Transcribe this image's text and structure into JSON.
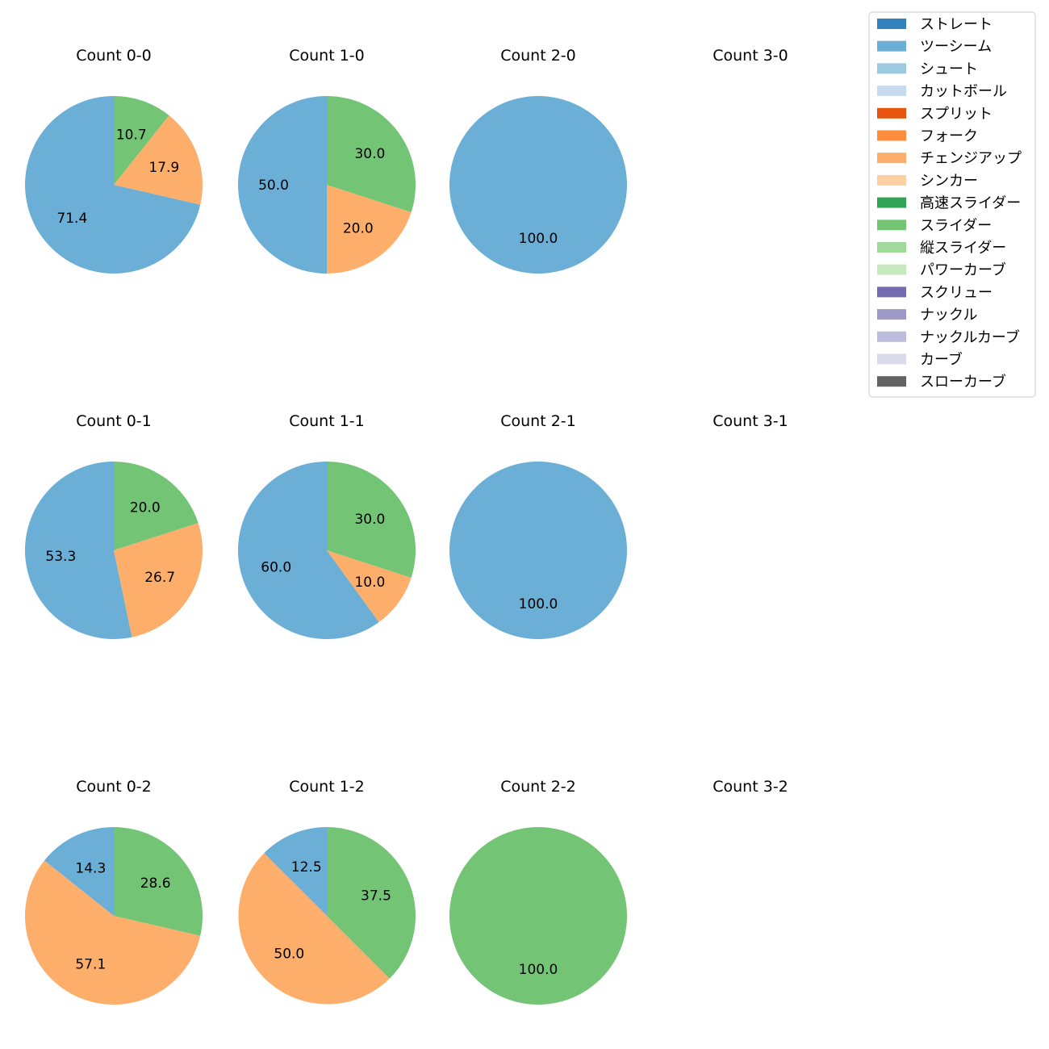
{
  "chart_data": {
    "type": "pie",
    "subplot_order": [
      "Count 0-0",
      "Count 1-0",
      "Count 2-0",
      "Count 3-0",
      "Count 0-1",
      "Count 1-1",
      "Count 2-1",
      "Count 3-1",
      "Count 0-2",
      "Count 1-2",
      "Count 2-2",
      "Count 3-2"
    ],
    "legend": {
      "placement": "top-right",
      "entries": [
        {
          "label": "ストレート",
          "color": "#3182bd"
        },
        {
          "label": "ツーシーム",
          "color": "#6baed6"
        },
        {
          "label": "シュート",
          "color": "#9ecae1"
        },
        {
          "label": "カットボール",
          "color": "#c6dbef"
        },
        {
          "label": "スプリット",
          "color": "#e6550d"
        },
        {
          "label": "フォーク",
          "color": "#fd8d3c"
        },
        {
          "label": "チェンジアップ",
          "color": "#fdae6b"
        },
        {
          "label": "シンカー",
          "color": "#fdd0a2"
        },
        {
          "label": "高速スライダー",
          "color": "#31a354"
        },
        {
          "label": "スライダー",
          "color": "#74c476"
        },
        {
          "label": "縦スライダー",
          "color": "#a1d99b"
        },
        {
          "label": "パワーカーブ",
          "color": "#c7e9c0"
        },
        {
          "label": "スクリュー",
          "color": "#756bb1"
        },
        {
          "label": "ナックル",
          "color": "#9e9ac8"
        },
        {
          "label": "ナックルカーブ",
          "color": "#bcbddc"
        },
        {
          "label": "カーブ",
          "color": "#dadaeb"
        },
        {
          "label": "スローカーブ",
          "color": "#636363"
        }
      ]
    },
    "charts": [
      {
        "title": "Count 0-0",
        "slices": [
          {
            "pitch": "ツーシーム",
            "value": 71.4,
            "label": "71.4"
          },
          {
            "pitch": "チェンジアップ",
            "value": 17.9,
            "label": "17.9"
          },
          {
            "pitch": "スライダー",
            "value": 10.7,
            "label": "10.7"
          }
        ]
      },
      {
        "title": "Count 1-0",
        "slices": [
          {
            "pitch": "ツーシーム",
            "value": 50.0,
            "label": "50.0"
          },
          {
            "pitch": "チェンジアップ",
            "value": 20.0,
            "label": "20.0"
          },
          {
            "pitch": "スライダー",
            "value": 30.0,
            "label": "30.0"
          }
        ]
      },
      {
        "title": "Count 2-0",
        "slices": [
          {
            "pitch": "ツーシーム",
            "value": 100.0,
            "label": "100.0"
          }
        ]
      },
      {
        "title": "Count 3-0",
        "slices": []
      },
      {
        "title": "Count 0-1",
        "slices": [
          {
            "pitch": "ツーシーム",
            "value": 53.3,
            "label": "53.3"
          },
          {
            "pitch": "チェンジアップ",
            "value": 26.7,
            "label": "26.7"
          },
          {
            "pitch": "スライダー",
            "value": 20.0,
            "label": "20.0"
          }
        ]
      },
      {
        "title": "Count 1-1",
        "slices": [
          {
            "pitch": "ツーシーム",
            "value": 60.0,
            "label": "60.0"
          },
          {
            "pitch": "チェンジアップ",
            "value": 10.0,
            "label": "10.0"
          },
          {
            "pitch": "スライダー",
            "value": 30.0,
            "label": "30.0"
          }
        ]
      },
      {
        "title": "Count 2-1",
        "slices": [
          {
            "pitch": "ツーシーム",
            "value": 100.0,
            "label": "100.0"
          }
        ]
      },
      {
        "title": "Count 3-1",
        "slices": []
      },
      {
        "title": "Count 0-2",
        "slices": [
          {
            "pitch": "ツーシーム",
            "value": 14.3,
            "label": "14.3"
          },
          {
            "pitch": "チェンジアップ",
            "value": 57.1,
            "label": "57.1"
          },
          {
            "pitch": "スライダー",
            "value": 28.6,
            "label": "28.6"
          }
        ]
      },
      {
        "title": "Count 1-2",
        "slices": [
          {
            "pitch": "ツーシーム",
            "value": 12.5,
            "label": "12.5"
          },
          {
            "pitch": "チェンジアップ",
            "value": 50.0,
            "label": "50.0"
          },
          {
            "pitch": "スライダー",
            "value": 37.5,
            "label": "37.5"
          }
        ]
      },
      {
        "title": "Count 2-2",
        "slices": [
          {
            "pitch": "スライダー",
            "value": 100.0,
            "label": "100.0"
          }
        ]
      },
      {
        "title": "Count 3-2",
        "slices": []
      }
    ]
  }
}
